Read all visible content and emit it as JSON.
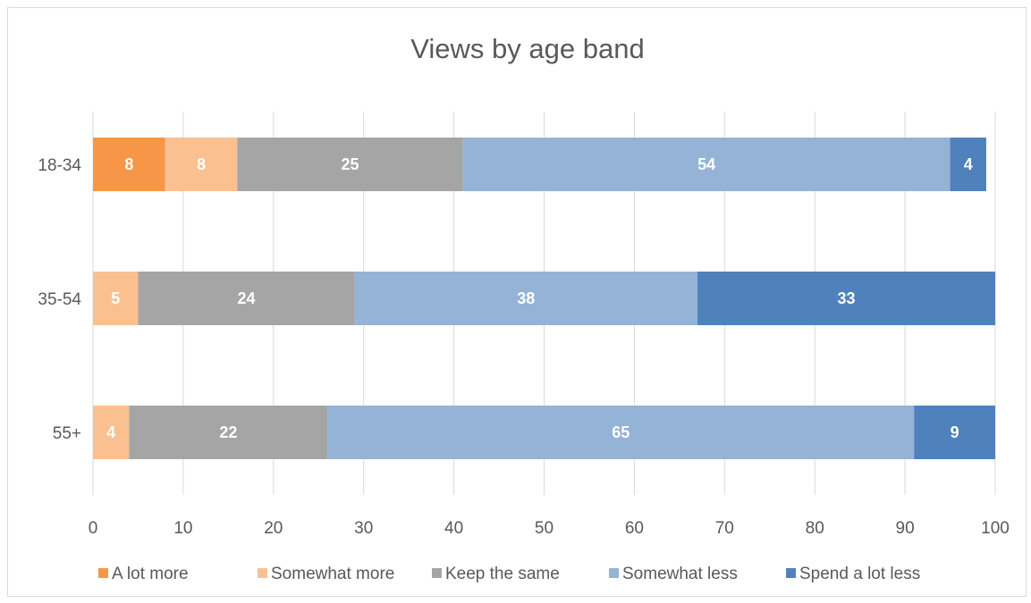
{
  "chart_data": {
    "type": "bar",
    "orientation": "horizontal",
    "stacked": true,
    "title": "Views by age band",
    "xlabel": "",
    "ylabel": "",
    "xlim": [
      0,
      100
    ],
    "xticks": [
      0,
      10,
      20,
      30,
      40,
      50,
      60,
      70,
      80,
      90,
      100
    ],
    "grid": "vertical",
    "legend_position": "bottom",
    "categories": [
      "18-34",
      "35-54",
      "55+"
    ],
    "series": [
      {
        "name": "A lot more",
        "color": "#f79646",
        "values": [
          8,
          0,
          0
        ]
      },
      {
        "name": "Somewhat more",
        "color": "#fac090",
        "values": [
          8,
          5,
          4
        ]
      },
      {
        "name": "Keep the same",
        "color": "#a5a5a5",
        "values": [
          25,
          24,
          22
        ]
      },
      {
        "name": "Somewhat less",
        "color": "#95b3d7",
        "values": [
          54,
          38,
          65
        ]
      },
      {
        "name": "Spend a lot less",
        "color": "#4f81bd",
        "values": [
          4,
          33,
          9
        ]
      }
    ]
  }
}
